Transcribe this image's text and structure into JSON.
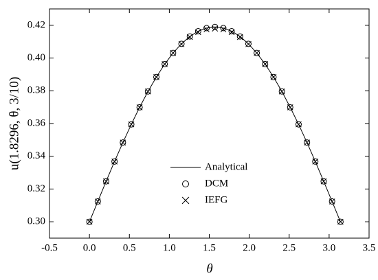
{
  "chart_data": {
    "type": "line",
    "x_label": "θ",
    "y_label": "u(1.8296, θ, 3/10)",
    "x": [
      0,
      0.105,
      0.209,
      0.314,
      0.419,
      0.524,
      0.628,
      0.733,
      0.838,
      0.942,
      1.047,
      1.152,
      1.257,
      1.361,
      1.466,
      1.571,
      1.676,
      1.78,
      1.885,
      1.99,
      2.094,
      2.199,
      2.304,
      2.409,
      2.513,
      2.618,
      2.723,
      2.827,
      2.932,
      3.037,
      3.142
    ],
    "series": [
      {
        "name": "Analytical",
        "color": "#000000",
        "style": "line",
        "values": [
          0.3,
          0.3124,
          0.3247,
          0.3368,
          0.3484,
          0.3595,
          0.3699,
          0.3796,
          0.3884,
          0.3963,
          0.4031,
          0.4087,
          0.4132,
          0.4164,
          0.4183,
          0.419,
          0.4183,
          0.4164,
          0.4132,
          0.4087,
          0.4031,
          0.3963,
          0.3884,
          0.3796,
          0.3699,
          0.3595,
          0.3484,
          0.3368,
          0.3247,
          0.3124,
          0.3
        ]
      },
      {
        "name": "DCM",
        "color": "#000000",
        "style": "circle",
        "values": [
          0.3,
          0.3124,
          0.3247,
          0.3368,
          0.3484,
          0.3595,
          0.3699,
          0.3796,
          0.3884,
          0.3963,
          0.4031,
          0.4087,
          0.4132,
          0.4164,
          0.4183,
          0.419,
          0.4183,
          0.4164,
          0.4132,
          0.4087,
          0.4031,
          0.3963,
          0.3884,
          0.3796,
          0.3699,
          0.3595,
          0.3484,
          0.3368,
          0.3247,
          0.3124,
          0.3
        ]
      },
      {
        "name": "IEFG",
        "color": "#000000",
        "style": "cross",
        "values": [
          0.3,
          0.3124,
          0.3247,
          0.3368,
          0.3484,
          0.3595,
          0.3699,
          0.3796,
          0.3884,
          0.3963,
          0.4031,
          0.4085,
          0.4128,
          0.4158,
          0.4175,
          0.418,
          0.4175,
          0.4158,
          0.4128,
          0.4085,
          0.4031,
          0.3963,
          0.3884,
          0.3796,
          0.3699,
          0.3595,
          0.3484,
          0.3368,
          0.3247,
          0.3124,
          0.3
        ]
      }
    ],
    "xlim": [
      -0.5,
      3.5
    ],
    "xticks": [
      -0.5,
      {
        "value": 0,
        "label": "0.0"
      },
      0.5,
      {
        "value": 1,
        "label": "1.0"
      },
      1.5,
      {
        "value": 2,
        "label": "2.0"
      },
      2.5,
      {
        "value": 3,
        "label": "3.0"
      },
      3.5
    ],
    "ylim": [
      0.29,
      0.43
    ],
    "yticks": [
      {
        "value": 0.3,
        "label": "0.30"
      },
      0.32,
      0.34,
      0.36,
      0.38,
      {
        "value": 0.4,
        "label": "0.40"
      },
      0.42
    ],
    "grid": false
  }
}
